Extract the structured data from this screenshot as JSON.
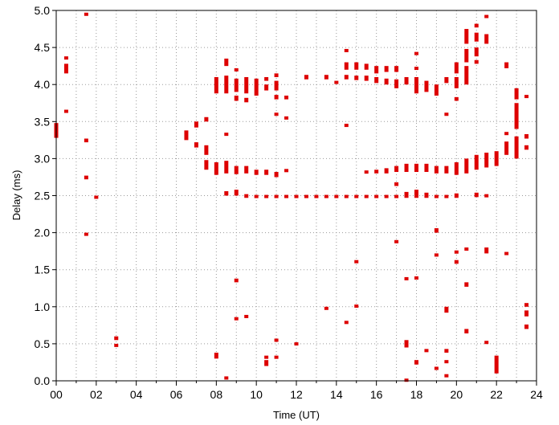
{
  "chart_data": {
    "type": "scatter",
    "title": "",
    "xlabel": "Time (UT)",
    "ylabel": "Delay (ms)",
    "xlim": [
      0,
      24
    ],
    "ylim": [
      0,
      5
    ],
    "x_ticks": [
      0,
      2,
      4,
      6,
      8,
      10,
      12,
      14,
      16,
      18,
      20,
      22,
      24
    ],
    "x_tick_labels": [
      "00",
      "02",
      "04",
      "06",
      "08",
      "10",
      "12",
      "14",
      "16",
      "18",
      "20",
      "22",
      "24"
    ],
    "y_ticks": [
      0,
      0.5,
      1,
      1.5,
      2,
      2.5,
      3,
      3.5,
      4,
      4.5,
      5
    ],
    "y_tick_labels": [
      "0.0",
      "0.5",
      "1.0",
      "1.5",
      "2.0",
      "2.5",
      "3.0",
      "3.5",
      "4.0",
      "4.5",
      "5.0"
    ],
    "grid": {
      "x_minor_step": 1,
      "y_step": 0.5,
      "style": "dotted"
    },
    "marker_color": "#dd0000",
    "segments": [
      {
        "x": 0.0,
        "y0": 3.28,
        "y1": 3.48
      },
      {
        "x": 0.5,
        "y0": 4.15,
        "y1": 4.28
      },
      {
        "x": 0.5,
        "y0": 4.35,
        "y1": 4.38
      },
      {
        "x": 0.5,
        "y0": 3.62,
        "y1": 3.66
      },
      {
        "x": 1.5,
        "y0": 4.94,
        "y1": 4.97
      },
      {
        "x": 1.5,
        "y0": 3.22,
        "y1": 3.27
      },
      {
        "x": 1.5,
        "y0": 2.72,
        "y1": 2.77
      },
      {
        "x": 1.5,
        "y0": 1.97,
        "y1": 2.0
      },
      {
        "x": 2.0,
        "y0": 2.46,
        "y1": 2.5
      },
      {
        "x": 3.0,
        "y0": 0.55,
        "y1": 0.6
      },
      {
        "x": 3.0,
        "y0": 0.46,
        "y1": 0.5
      },
      {
        "x": 6.5,
        "y0": 3.25,
        "y1": 3.38
      },
      {
        "x": 7.0,
        "y0": 3.42,
        "y1": 3.5
      },
      {
        "x": 7.0,
        "y0": 3.15,
        "y1": 3.22
      },
      {
        "x": 7.5,
        "y0": 3.5,
        "y1": 3.56
      },
      {
        "x": 7.5,
        "y0": 3.05,
        "y1": 3.18
      },
      {
        "x": 7.5,
        "y0": 2.85,
        "y1": 2.98
      },
      {
        "x": 8.0,
        "y0": 3.88,
        "y1": 4.1
      },
      {
        "x": 8.0,
        "y0": 2.78,
        "y1": 2.95
      },
      {
        "x": 8.0,
        "y0": 0.3,
        "y1": 0.38
      },
      {
        "x": 8.5,
        "y0": 4.25,
        "y1": 4.35
      },
      {
        "x": 8.5,
        "y0": 3.88,
        "y1": 4.12
      },
      {
        "x": 8.5,
        "y0": 3.32,
        "y1": 3.35
      },
      {
        "x": 8.5,
        "y0": 2.8,
        "y1": 2.97
      },
      {
        "x": 8.5,
        "y0": 2.5,
        "y1": 2.56
      },
      {
        "x": 8.5,
        "y0": 0.02,
        "y1": 0.06
      },
      {
        "x": 9.0,
        "y0": 4.18,
        "y1": 4.22
      },
      {
        "x": 9.0,
        "y0": 3.9,
        "y1": 4.08
      },
      {
        "x": 9.0,
        "y0": 3.78,
        "y1": 3.85
      },
      {
        "x": 9.0,
        "y0": 2.79,
        "y1": 2.9
      },
      {
        "x": 9.0,
        "y0": 2.5,
        "y1": 2.58
      },
      {
        "x": 9.0,
        "y0": 1.33,
        "y1": 1.38
      },
      {
        "x": 9.0,
        "y0": 0.82,
        "y1": 0.86
      },
      {
        "x": 9.5,
        "y0": 3.88,
        "y1": 4.1
      },
      {
        "x": 9.5,
        "y0": 3.76,
        "y1": 3.82
      },
      {
        "x": 9.5,
        "y0": 2.8,
        "y1": 2.9
      },
      {
        "x": 9.5,
        "y0": 2.47,
        "y1": 2.52
      },
      {
        "x": 9.5,
        "y0": 0.85,
        "y1": 0.89
      },
      {
        "x": 10.0,
        "y0": 3.85,
        "y1": 4.08
      },
      {
        "x": 10.0,
        "y0": 2.78,
        "y1": 2.85
      },
      {
        "x": 10.0,
        "y0": 2.47,
        "y1": 2.51
      },
      {
        "x": 10.5,
        "y0": 4.05,
        "y1": 4.1
      },
      {
        "x": 10.5,
        "y0": 3.92,
        "y1": 4.0
      },
      {
        "x": 10.5,
        "y0": 2.78,
        "y1": 2.85
      },
      {
        "x": 10.5,
        "y0": 2.47,
        "y1": 2.51
      },
      {
        "x": 10.5,
        "y0": 0.2,
        "y1": 0.28
      },
      {
        "x": 10.5,
        "y0": 0.31,
        "y1": 0.34
      },
      {
        "x": 11.0,
        "y0": 4.1,
        "y1": 4.15
      },
      {
        "x": 11.0,
        "y0": 3.92,
        "y1": 4.05
      },
      {
        "x": 11.0,
        "y0": 3.8,
        "y1": 3.86
      },
      {
        "x": 11.0,
        "y0": 3.58,
        "y1": 3.62
      },
      {
        "x": 11.0,
        "y0": 2.75,
        "y1": 2.82
      },
      {
        "x": 11.0,
        "y0": 2.47,
        "y1": 2.51
      },
      {
        "x": 11.0,
        "y0": 0.53,
        "y1": 0.57
      },
      {
        "x": 11.0,
        "y0": 0.3,
        "y1": 0.34
      },
      {
        "x": 11.5,
        "y0": 3.8,
        "y1": 3.85
      },
      {
        "x": 11.5,
        "y0": 3.53,
        "y1": 3.57
      },
      {
        "x": 11.5,
        "y0": 2.82,
        "y1": 2.86
      },
      {
        "x": 11.5,
        "y0": 2.47,
        "y1": 2.51
      },
      {
        "x": 12.0,
        "y0": 2.47,
        "y1": 2.51
      },
      {
        "x": 12.0,
        "y0": 0.49,
        "y1": 0.52
      },
      {
        "x": 12.5,
        "y0": 4.07,
        "y1": 4.13
      },
      {
        "x": 12.5,
        "y0": 2.47,
        "y1": 2.51
      },
      {
        "x": 13.0,
        "y0": 2.47,
        "y1": 2.51
      },
      {
        "x": 13.5,
        "y0": 4.07,
        "y1": 4.13
      },
      {
        "x": 13.5,
        "y0": 2.47,
        "y1": 2.51
      },
      {
        "x": 13.5,
        "y0": 0.97,
        "y1": 1.0
      },
      {
        "x": 14.0,
        "y0": 4.01,
        "y1": 4.05
      },
      {
        "x": 14.0,
        "y0": 2.47,
        "y1": 2.51
      },
      {
        "x": 14.5,
        "y0": 4.45,
        "y1": 4.48
      },
      {
        "x": 14.5,
        "y0": 4.2,
        "y1": 4.3
      },
      {
        "x": 14.5,
        "y0": 4.07,
        "y1": 4.13
      },
      {
        "x": 14.5,
        "y0": 3.43,
        "y1": 3.47
      },
      {
        "x": 14.5,
        "y0": 2.47,
        "y1": 2.51
      },
      {
        "x": 14.5,
        "y0": 0.78,
        "y1": 0.81
      },
      {
        "x": 15.0,
        "y0": 4.2,
        "y1": 4.3
      },
      {
        "x": 15.0,
        "y0": 4.06,
        "y1": 4.12
      },
      {
        "x": 15.0,
        "y0": 2.47,
        "y1": 2.51
      },
      {
        "x": 15.0,
        "y0": 1.6,
        "y1": 1.63
      },
      {
        "x": 15.0,
        "y0": 1.0,
        "y1": 1.03
      },
      {
        "x": 15.5,
        "y0": 4.2,
        "y1": 4.28
      },
      {
        "x": 15.5,
        "y0": 4.05,
        "y1": 4.12
      },
      {
        "x": 15.5,
        "y0": 2.8,
        "y1": 2.84
      },
      {
        "x": 15.5,
        "y0": 2.47,
        "y1": 2.51
      },
      {
        "x": 16.0,
        "y0": 4.15,
        "y1": 4.25
      },
      {
        "x": 16.0,
        "y0": 4.02,
        "y1": 4.1
      },
      {
        "x": 16.0,
        "y0": 2.8,
        "y1": 2.85
      },
      {
        "x": 16.0,
        "y0": 2.47,
        "y1": 2.51
      },
      {
        "x": 16.5,
        "y0": 4.17,
        "y1": 4.25
      },
      {
        "x": 16.5,
        "y0": 4.0,
        "y1": 4.08
      },
      {
        "x": 16.5,
        "y0": 2.8,
        "y1": 2.87
      },
      {
        "x": 16.5,
        "y0": 2.47,
        "y1": 2.51
      },
      {
        "x": 17.0,
        "y0": 4.17,
        "y1": 4.25
      },
      {
        "x": 17.0,
        "y0": 3.95,
        "y1": 4.07
      },
      {
        "x": 17.0,
        "y0": 2.82,
        "y1": 2.9
      },
      {
        "x": 17.0,
        "y0": 2.63,
        "y1": 2.68
      },
      {
        "x": 17.0,
        "y0": 2.47,
        "y1": 2.51
      },
      {
        "x": 17.0,
        "y0": 1.87,
        "y1": 1.9
      },
      {
        "x": 17.5,
        "y0": 4.0,
        "y1": 4.1
      },
      {
        "x": 17.5,
        "y0": 2.82,
        "y1": 2.93
      },
      {
        "x": 17.5,
        "y0": 2.47,
        "y1": 2.55
      },
      {
        "x": 17.5,
        "y0": 1.37,
        "y1": 1.4
      },
      {
        "x": 17.5,
        "y0": 0.45,
        "y1": 0.55
      },
      {
        "x": 17.5,
        "y0": 0.0,
        "y1": 0.03
      },
      {
        "x": 18.0,
        "y0": 4.4,
        "y1": 4.44
      },
      {
        "x": 18.0,
        "y0": 4.2,
        "y1": 4.24
      },
      {
        "x": 18.0,
        "y0": 3.88,
        "y1": 4.1
      },
      {
        "x": 18.0,
        "y0": 2.82,
        "y1": 2.93
      },
      {
        "x": 18.0,
        "y0": 2.47,
        "y1": 2.58
      },
      {
        "x": 18.0,
        "y0": 1.38,
        "y1": 1.41
      },
      {
        "x": 18.0,
        "y0": 0.22,
        "y1": 0.28
      },
      {
        "x": 18.5,
        "y0": 3.9,
        "y1": 4.05
      },
      {
        "x": 18.5,
        "y0": 2.82,
        "y1": 2.93
      },
      {
        "x": 18.5,
        "y0": 2.47,
        "y1": 2.54
      },
      {
        "x": 18.5,
        "y0": 0.4,
        "y1": 0.43
      },
      {
        "x": 19.0,
        "y0": 3.85,
        "y1": 4.0
      },
      {
        "x": 19.0,
        "y0": 2.8,
        "y1": 2.9
      },
      {
        "x": 19.0,
        "y0": 2.47,
        "y1": 2.51
      },
      {
        "x": 19.0,
        "y0": 2.0,
        "y1": 2.06
      },
      {
        "x": 19.0,
        "y0": 1.68,
        "y1": 1.72
      },
      {
        "x": 19.0,
        "y0": 0.16,
        "y1": 0.19
      },
      {
        "x": 19.5,
        "y0": 4.02,
        "y1": 4.1
      },
      {
        "x": 19.5,
        "y0": 3.58,
        "y1": 3.62
      },
      {
        "x": 19.5,
        "y0": 2.8,
        "y1": 2.9
      },
      {
        "x": 19.5,
        "y0": 2.47,
        "y1": 2.51
      },
      {
        "x": 19.5,
        "y0": 0.92,
        "y1": 1.0
      },
      {
        "x": 19.5,
        "y0": 0.38,
        "y1": 0.43
      },
      {
        "x": 19.5,
        "y0": 0.25,
        "y1": 0.28
      },
      {
        "x": 19.5,
        "y0": 0.06,
        "y1": 0.09
      },
      {
        "x": 20.0,
        "y0": 4.15,
        "y1": 4.3
      },
      {
        "x": 20.0,
        "y0": 3.95,
        "y1": 4.1
      },
      {
        "x": 20.0,
        "y0": 3.78,
        "y1": 3.83
      },
      {
        "x": 20.0,
        "y0": 2.78,
        "y1": 2.95
      },
      {
        "x": 20.0,
        "y0": 2.47,
        "y1": 2.53
      },
      {
        "x": 20.0,
        "y0": 1.72,
        "y1": 1.76
      },
      {
        "x": 20.0,
        "y0": 1.58,
        "y1": 1.63
      },
      {
        "x": 20.5,
        "y0": 4.55,
        "y1": 4.75
      },
      {
        "x": 20.5,
        "y0": 4.3,
        "y1": 4.48
      },
      {
        "x": 20.5,
        "y0": 4.0,
        "y1": 4.25
      },
      {
        "x": 20.5,
        "y0": 2.8,
        "y1": 3.0
      },
      {
        "x": 20.5,
        "y0": 1.76,
        "y1": 1.8
      },
      {
        "x": 20.5,
        "y0": 1.27,
        "y1": 1.33
      },
      {
        "x": 20.5,
        "y0": 0.64,
        "y1": 0.7
      },
      {
        "x": 21.0,
        "y0": 4.77,
        "y1": 4.82
      },
      {
        "x": 21.0,
        "y0": 4.58,
        "y1": 4.7
      },
      {
        "x": 21.0,
        "y0": 4.38,
        "y1": 4.5
      },
      {
        "x": 21.0,
        "y0": 4.28,
        "y1": 4.33
      },
      {
        "x": 21.0,
        "y0": 2.85,
        "y1": 3.05
      },
      {
        "x": 21.0,
        "y0": 2.48,
        "y1": 2.54
      },
      {
        "x": 21.5,
        "y0": 4.9,
        "y1": 4.94
      },
      {
        "x": 21.5,
        "y0": 4.55,
        "y1": 4.68
      },
      {
        "x": 21.5,
        "y0": 2.88,
        "y1": 3.08
      },
      {
        "x": 21.5,
        "y0": 2.48,
        "y1": 2.52
      },
      {
        "x": 21.5,
        "y0": 1.72,
        "y1": 1.8
      },
      {
        "x": 21.5,
        "y0": 0.51,
        "y1": 0.54
      },
      {
        "x": 22.0,
        "y0": 2.9,
        "y1": 3.1
      },
      {
        "x": 22.0,
        "y0": 0.1,
        "y1": 0.34
      },
      {
        "x": 22.5,
        "y0": 4.22,
        "y1": 4.3
      },
      {
        "x": 22.5,
        "y0": 3.32,
        "y1": 3.36
      },
      {
        "x": 22.5,
        "y0": 3.05,
        "y1": 3.23
      },
      {
        "x": 22.5,
        "y0": 1.71,
        "y1": 1.74
      },
      {
        "x": 23.0,
        "y0": 3.8,
        "y1": 3.95
      },
      {
        "x": 23.0,
        "y0": 3.4,
        "y1": 3.75
      },
      {
        "x": 23.0,
        "y0": 3.0,
        "y1": 3.3
      },
      {
        "x": 23.5,
        "y0": 3.82,
        "y1": 3.86
      },
      {
        "x": 23.5,
        "y0": 3.27,
        "y1": 3.33
      },
      {
        "x": 23.5,
        "y0": 3.12,
        "y1": 3.18
      },
      {
        "x": 23.5,
        "y0": 1.0,
        "y1": 1.05
      },
      {
        "x": 23.5,
        "y0": 0.87,
        "y1": 0.95
      },
      {
        "x": 23.5,
        "y0": 0.7,
        "y1": 0.76
      }
    ]
  }
}
